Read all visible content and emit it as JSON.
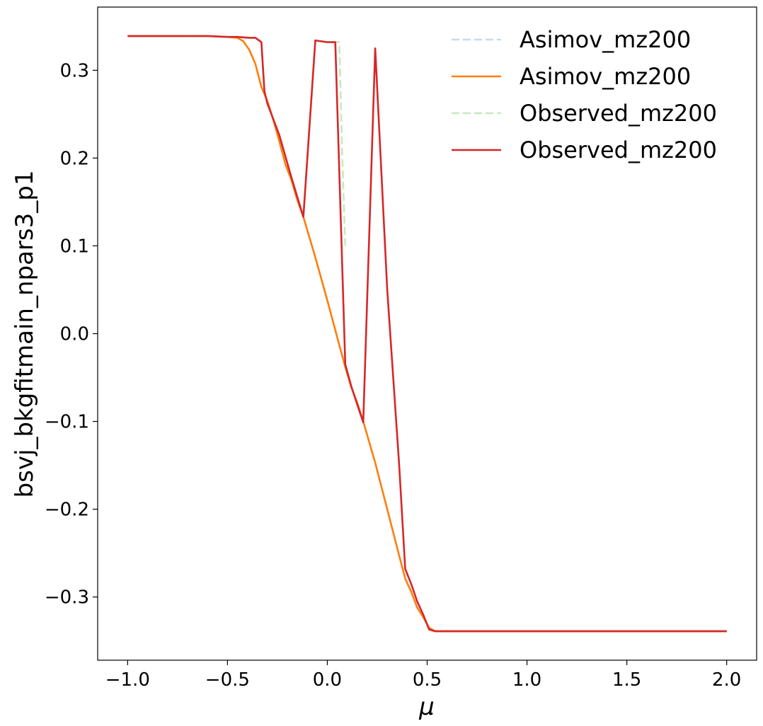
{
  "chart_data": {
    "type": "line",
    "xlabel": "μ",
    "ylabel": "bsvj_bkgfitmain_npars3_p1",
    "xlim": [
      -1.15,
      2.15
    ],
    "ylim": [
      -0.372,
      0.372
    ],
    "xticks": [
      {
        "value": -1.0,
        "label": "−1.0"
      },
      {
        "value": -0.5,
        "label": "−0.5"
      },
      {
        "value": 0.0,
        "label": "0.0"
      },
      {
        "value": 0.5,
        "label": "0.5"
      },
      {
        "value": 1.0,
        "label": "1.0"
      },
      {
        "value": 1.5,
        "label": "1.5"
      },
      {
        "value": 2.0,
        "label": "2.0"
      }
    ],
    "yticks": [
      {
        "value": -0.3,
        "label": "−0.3"
      },
      {
        "value": -0.2,
        "label": "−0.2"
      },
      {
        "value": -0.1,
        "label": "−0.1"
      },
      {
        "value": 0.0,
        "label": "0.0"
      },
      {
        "value": 0.1,
        "label": "0.1"
      },
      {
        "value": 0.2,
        "label": "0.2"
      },
      {
        "value": 0.3,
        "label": "0.3"
      }
    ],
    "grid": false,
    "legend_position": "top-right",
    "series": [
      {
        "name": "Asimov_mz200",
        "color": "#c6dbef",
        "dash": true,
        "x": [
          -1.0,
          -0.6,
          -0.5,
          -0.45,
          -0.42,
          -0.39,
          -0.36,
          -0.33,
          -0.3,
          -0.27,
          -0.24,
          -0.21,
          -0.18,
          -0.15,
          -0.12,
          -0.06,
          0.0,
          0.06,
          0.09,
          0.12,
          0.15,
          0.18,
          0.24,
          0.3,
          0.36,
          0.39,
          0.42,
          0.45,
          0.48,
          0.51,
          0.54,
          0.6,
          1.0,
          1.5,
          2.0
        ],
        "y": [
          0.339,
          0.339,
          0.338,
          0.337,
          0.333,
          0.323,
          0.307,
          0.281,
          0.265,
          0.243,
          0.219,
          0.193,
          0.175,
          0.152,
          0.133,
          0.087,
          0.038,
          -0.013,
          -0.038,
          -0.061,
          -0.079,
          -0.1,
          -0.147,
          -0.2,
          -0.253,
          -0.279,
          -0.294,
          -0.312,
          -0.323,
          -0.335,
          -0.339,
          -0.339,
          -0.339,
          -0.339,
          -0.339
        ]
      },
      {
        "name": "Asimov_mz200",
        "color": "#ff7f0e",
        "dash": false,
        "x": [
          -1.0,
          -0.6,
          -0.5,
          -0.45,
          -0.42,
          -0.39,
          -0.36,
          -0.33,
          -0.3,
          -0.27,
          -0.24,
          -0.21,
          -0.18,
          -0.15,
          -0.12,
          -0.06,
          0.0,
          0.06,
          0.09,
          0.12,
          0.15,
          0.18,
          0.24,
          0.3,
          0.36,
          0.39,
          0.42,
          0.45,
          0.48,
          0.51,
          0.54,
          0.6,
          1.0,
          1.5,
          2.0
        ],
        "y": [
          0.339,
          0.339,
          0.338,
          0.337,
          0.333,
          0.323,
          0.307,
          0.281,
          0.265,
          0.243,
          0.219,
          0.193,
          0.175,
          0.152,
          0.133,
          0.087,
          0.038,
          -0.013,
          -0.038,
          -0.061,
          -0.079,
          -0.1,
          -0.147,
          -0.2,
          -0.253,
          -0.279,
          -0.294,
          -0.312,
          -0.323,
          -0.335,
          -0.339,
          -0.339,
          -0.339,
          -0.339,
          -0.339
        ]
      },
      {
        "name": "Observed_mz200",
        "color": "#c7e9c0",
        "dash": true,
        "x": [
          -1.0,
          -0.6,
          -0.5,
          -0.45,
          -0.39,
          -0.36,
          -0.33,
          -0.315,
          -0.3,
          -0.24,
          -0.18,
          -0.12,
          -0.06,
          0.0,
          0.03,
          0.06,
          0.075,
          0.09
        ],
        "y": [
          0.339,
          0.339,
          0.338,
          0.338,
          0.337,
          0.337,
          0.332,
          0.276,
          0.262,
          0.226,
          0.178,
          0.133,
          0.334,
          0.332,
          0.332,
          0.332,
          0.2,
          0.1
        ]
      },
      {
        "name": "Observed_mz200",
        "color": "#d62728",
        "dash": false,
        "x": [
          -1.0,
          -0.6,
          -0.5,
          -0.45,
          -0.39,
          -0.36,
          -0.33,
          -0.315,
          -0.3,
          -0.24,
          -0.18,
          -0.12,
          -0.06,
          0.0,
          0.04,
          0.09,
          0.12,
          0.15,
          0.18,
          0.24,
          0.3,
          0.36,
          0.39,
          0.42,
          0.45,
          0.48,
          0.51,
          0.54,
          0.6,
          1.0,
          1.5,
          2.0
        ],
        "y": [
          0.339,
          0.339,
          0.338,
          0.338,
          0.337,
          0.337,
          0.332,
          0.276,
          0.262,
          0.226,
          0.178,
          0.133,
          0.334,
          0.332,
          0.332,
          -0.035,
          -0.06,
          -0.081,
          -0.101,
          0.325,
          0.05,
          -0.15,
          -0.268,
          -0.285,
          -0.305,
          -0.32,
          -0.337,
          -0.339,
          -0.339,
          -0.339,
          -0.339,
          -0.339
        ]
      }
    ]
  }
}
